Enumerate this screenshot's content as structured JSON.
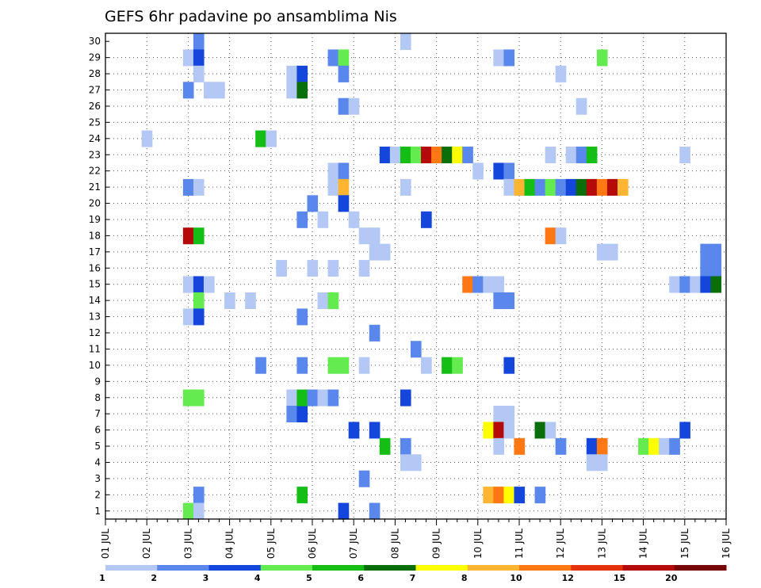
{
  "chart_data": {
    "type": "heatmap",
    "title": "GEFS 6hr padavine po ansamblima Nis",
    "xlabel": "",
    "ylabel": "",
    "x_tick_labels": [
      "01 JUL",
      "02 JUL",
      "03 JUL",
      "04 JUL",
      "05 JUL",
      "06 JUL",
      "07 JUL",
      "08 JUL",
      "09 JUL",
      "10 JUL",
      "11 JUL",
      "12 JUL",
      "13 JUL",
      "14 JUL",
      "15 JUL",
      "16 JUL"
    ],
    "x_range": [
      "01 JUL 00Z",
      "16 JUL 00Z"
    ],
    "time_step": "6hr",
    "y_tick_labels": [
      "1",
      "2",
      "3",
      "4",
      "5",
      "6",
      "7",
      "8",
      "9",
      "10",
      "11",
      "12",
      "13",
      "14",
      "15",
      "16",
      "17",
      "18",
      "19",
      "20",
      "21",
      "22",
      "23",
      "24",
      "25",
      "26",
      "27",
      "28",
      "29",
      "30"
    ],
    "y_range": [
      0,
      30
    ],
    "grid": "dotted",
    "colorbar": {
      "position": "bottom",
      "labels": [
        "1",
        "2",
        "3",
        "4",
        "5",
        "6",
        "7",
        "8",
        "10",
        "12",
        "15",
        "20"
      ],
      "colors": [
        "#b4c8f5",
        "#5a87eb",
        "#1446dc",
        "#64eb50",
        "#14be14",
        "#0a6e0a",
        "#ffff00",
        "#ffb432",
        "#ff7814",
        "#e6320a",
        "#b40a0a",
        "#780505"
      ]
    },
    "cells": [
      {
        "day": "03 JUL",
        "h": "00Z",
        "m": 29,
        "v": 1
      },
      {
        "day": "03 JUL",
        "h": "00Z",
        "m": 27,
        "v": 2
      },
      {
        "day": "03 JUL",
        "h": "00Z",
        "m": 21,
        "v": 2
      },
      {
        "day": "03 JUL",
        "h": "00Z",
        "m": 18,
        "v": 15
      },
      {
        "day": "03 JUL",
        "h": "00Z",
        "m": 15,
        "v": 1
      },
      {
        "day": "03 JUL",
        "h": "00Z",
        "m": 13,
        "v": 1
      },
      {
        "day": "03 JUL",
        "h": "00Z",
        "m": 8,
        "v": 4
      },
      {
        "day": "03 JUL",
        "h": "00Z",
        "m": 1,
        "v": 4
      },
      {
        "day": "03 JUL",
        "h": "06Z",
        "m": 30,
        "v": 2
      },
      {
        "day": "03 JUL",
        "h": "06Z",
        "m": 29,
        "v": 3
      },
      {
        "day": "03 JUL",
        "h": "06Z",
        "m": 28,
        "v": 1
      },
      {
        "day": "03 JUL",
        "h": "06Z",
        "m": 21,
        "v": 1
      },
      {
        "day": "03 JUL",
        "h": "06Z",
        "m": 18,
        "v": 5
      },
      {
        "day": "03 JUL",
        "h": "06Z",
        "m": 15,
        "v": 3
      },
      {
        "day": "03 JUL",
        "h": "06Z",
        "m": 14,
        "v": 4
      },
      {
        "day": "03 JUL",
        "h": "06Z",
        "m": 13,
        "v": 3
      },
      {
        "day": "03 JUL",
        "h": "06Z",
        "m": 8,
        "v": 4
      },
      {
        "day": "03 JUL",
        "h": "06Z",
        "m": 2,
        "v": 2
      },
      {
        "day": "03 JUL",
        "h": "06Z",
        "m": 1,
        "v": 1
      },
      {
        "day": "02 JUL",
        "h": "00Z",
        "m": 24,
        "v": 1
      },
      {
        "day": "03 JUL",
        "h": "12Z",
        "m": 27,
        "v": 1
      },
      {
        "day": "03 JUL",
        "h": "18Z",
        "m": 27,
        "v": 1
      },
      {
        "day": "03 JUL",
        "h": "12Z",
        "m": 15,
        "v": 1
      },
      {
        "day": "04 JUL",
        "h": "00Z",
        "m": 14,
        "v": 1
      },
      {
        "day": "04 JUL",
        "h": "12Z",
        "m": 14,
        "v": 1
      },
      {
        "day": "04 JUL",
        "h": "18Z",
        "m": 24,
        "v": 5
      },
      {
        "day": "05 JUL",
        "h": "00Z",
        "m": 24,
        "v": 1
      },
      {
        "day": "04 JUL",
        "h": "18Z",
        "m": 10,
        "v": 2
      },
      {
        "day": "05 JUL",
        "h": "06Z",
        "m": 16,
        "v": 1
      },
      {
        "day": "05 JUL",
        "h": "12Z",
        "m": 28,
        "v": 1
      },
      {
        "day": "05 JUL",
        "h": "12Z",
        "m": 27,
        "v": 1
      },
      {
        "day": "05 JUL",
        "h": "12Z",
        "m": 8,
        "v": 1
      },
      {
        "day": "05 JUL",
        "h": "18Z",
        "m": 8,
        "v": 1
      },
      {
        "day": "05 JUL",
        "h": "12Z",
        "m": 7,
        "v": 2
      },
      {
        "day": "05 JUL",
        "h": "18Z",
        "m": 28,
        "v": 3
      },
      {
        "day": "05 JUL",
        "h": "18Z",
        "m": 27,
        "v": 6
      },
      {
        "day": "05 JUL",
        "h": "18Z",
        "m": 19,
        "v": 2
      },
      {
        "day": "05 JUL",
        "h": "18Z",
        "m": 13,
        "v": 2
      },
      {
        "day": "05 JUL",
        "h": "18Z",
        "m": 10,
        "v": 2
      },
      {
        "day": "05 JUL",
        "h": "18Z",
        "m": 7,
        "v": 3
      },
      {
        "day": "05 JUL",
        "h": "18Z",
        "m": 2,
        "v": 5
      },
      {
        "day": "05 JUL",
        "h": "18Z",
        "m": 8,
        "v": 5
      },
      {
        "day": "06 JUL",
        "h": "00Z",
        "m": 20,
        "v": 2
      },
      {
        "day": "06 JUL",
        "h": "00Z",
        "m": 16,
        "v": 1
      },
      {
        "day": "06 JUL",
        "h": "00Z",
        "m": 8,
        "v": 2
      },
      {
        "day": "06 JUL",
        "h": "06Z",
        "m": 19,
        "v": 1
      },
      {
        "day": "06 JUL",
        "h": "06Z",
        "m": 14,
        "v": 1
      },
      {
        "day": "06 JUL",
        "h": "06Z",
        "m": 8,
        "v": 1
      },
      {
        "day": "06 JUL",
        "h": "12Z",
        "m": 29,
        "v": 2
      },
      {
        "day": "06 JUL",
        "h": "12Z",
        "m": 22,
        "v": 1
      },
      {
        "day": "06 JUL",
        "h": "12Z",
        "m": 21,
        "v": 1
      },
      {
        "day": "06 JUL",
        "h": "12Z",
        "m": 16,
        "v": 1
      },
      {
        "day": "06 JUL",
        "h": "12Z",
        "m": 14,
        "v": 4
      },
      {
        "day": "06 JUL",
        "h": "12Z",
        "m": 10,
        "v": 4
      },
      {
        "day": "06 JUL",
        "h": "12Z",
        "m": 8,
        "v": 2
      },
      {
        "day": "06 JUL",
        "h": "18Z",
        "m": 29,
        "v": 4
      },
      {
        "day": "06 JUL",
        "h": "18Z",
        "m": 28,
        "v": 2
      },
      {
        "day": "06 JUL",
        "h": "18Z",
        "m": 26,
        "v": 2
      },
      {
        "day": "06 JUL",
        "h": "18Z",
        "m": 22,
        "v": 2
      },
      {
        "day": "06 JUL",
        "h": "18Z",
        "m": 21,
        "v": 8
      },
      {
        "day": "06 JUL",
        "h": "18Z",
        "m": 20,
        "v": 3
      },
      {
        "day": "06 JUL",
        "h": "18Z",
        "m": 10,
        "v": 4
      },
      {
        "day": "06 JUL",
        "h": "18Z",
        "m": 1,
        "v": 3
      },
      {
        "day": "07 JUL",
        "h": "00Z",
        "m": 26,
        "v": 1
      },
      {
        "day": "07 JUL",
        "h": "00Z",
        "m": 19,
        "v": 1
      },
      {
        "day": "07 JUL",
        "h": "00Z",
        "m": 6,
        "v": 3
      },
      {
        "day": "07 JUL",
        "h": "06Z",
        "m": 18,
        "v": 1
      },
      {
        "day": "07 JUL",
        "h": "06Z",
        "m": 16,
        "v": 1
      },
      {
        "day": "07 JUL",
        "h": "06Z",
        "m": 10,
        "v": 1
      },
      {
        "day": "07 JUL",
        "h": "06Z",
        "m": 3,
        "v": 2
      },
      {
        "day": "07 JUL",
        "h": "12Z",
        "m": 18,
        "v": 1
      },
      {
        "day": "07 JUL",
        "h": "12Z",
        "m": 17,
        "v": 1
      },
      {
        "day": "07 JUL",
        "h": "12Z",
        "m": 12,
        "v": 2
      },
      {
        "day": "07 JUL",
        "h": "12Z",
        "m": 6,
        "v": 3
      },
      {
        "day": "07 JUL",
        "h": "12Z",
        "m": 1,
        "v": 2
      },
      {
        "day": "07 JUL",
        "h": "18Z",
        "m": 23,
        "v": 3
      },
      {
        "day": "07 JUL",
        "h": "18Z",
        "m": 17,
        "v": 1
      },
      {
        "day": "07 JUL",
        "h": "18Z",
        "m": 5,
        "v": 5
      },
      {
        "day": "08 JUL",
        "h": "00Z",
        "m": 23,
        "v": 1
      },
      {
        "day": "08 JUL",
        "h": "06Z",
        "m": 30,
        "v": 1
      },
      {
        "day": "08 JUL",
        "h": "06Z",
        "m": 23,
        "v": 5
      },
      {
        "day": "08 JUL",
        "h": "06Z",
        "m": 21,
        "v": 1
      },
      {
        "day": "08 JUL",
        "h": "06Z",
        "m": 8,
        "v": 3
      },
      {
        "day": "08 JUL",
        "h": "06Z",
        "m": 5,
        "v": 2
      },
      {
        "day": "08 JUL",
        "h": "06Z",
        "m": 4,
        "v": 1
      },
      {
        "day": "08 JUL",
        "h": "12Z",
        "m": 23,
        "v": 4
      },
      {
        "day": "08 JUL",
        "h": "12Z",
        "m": 11,
        "v": 2
      },
      {
        "day": "08 JUL",
        "h": "12Z",
        "m": 4,
        "v": 1
      },
      {
        "day": "08 JUL",
        "h": "18Z",
        "m": 23,
        "v": 15
      },
      {
        "day": "08 JUL",
        "h": "18Z",
        "m": 19,
        "v": 3
      },
      {
        "day": "08 JUL",
        "h": "18Z",
        "m": 10,
        "v": 1
      },
      {
        "day": "09 JUL",
        "h": "00Z",
        "m": 23,
        "v": 10
      },
      {
        "day": "09 JUL",
        "h": "06Z",
        "m": 23,
        "v": 6
      },
      {
        "day": "09 JUL",
        "h": "06Z",
        "m": 10,
        "v": 5
      },
      {
        "day": "09 JUL",
        "h": "12Z",
        "m": 23,
        "v": 7
      },
      {
        "day": "09 JUL",
        "h": "12Z",
        "m": 10,
        "v": 4
      },
      {
        "day": "09 JUL",
        "h": "18Z",
        "m": 23,
        "v": 2
      },
      {
        "day": "09 JUL",
        "h": "18Z",
        "m": 15,
        "v": 10
      },
      {
        "day": "10 JUL",
        "h": "00Z",
        "m": 22,
        "v": 1
      },
      {
        "day": "10 JUL",
        "h": "00Z",
        "m": 15,
        "v": 2
      },
      {
        "day": "10 JUL",
        "h": "06Z",
        "m": 15,
        "v": 1
      },
      {
        "day": "10 JUL",
        "h": "06Z",
        "m": 6,
        "v": 7
      },
      {
        "day": "10 JUL",
        "h": "06Z",
        "m": 2,
        "v": 8
      },
      {
        "day": "10 JUL",
        "h": "12Z",
        "m": 29,
        "v": 1
      },
      {
        "day": "10 JUL",
        "h": "12Z",
        "m": 22,
        "v": 3
      },
      {
        "day": "10 JUL",
        "h": "12Z",
        "m": 15,
        "v": 1
      },
      {
        "day": "10 JUL",
        "h": "12Z",
        "m": 14,
        "v": 2
      },
      {
        "day": "10 JUL",
        "h": "12Z",
        "m": 7,
        "v": 1
      },
      {
        "day": "10 JUL",
        "h": "12Z",
        "m": 6,
        "v": 15
      },
      {
        "day": "10 JUL",
        "h": "12Z",
        "m": 5,
        "v": 1
      },
      {
        "day": "10 JUL",
        "h": "12Z",
        "m": 2,
        "v": 10
      },
      {
        "day": "10 JUL",
        "h": "18Z",
        "m": 29,
        "v": 2
      },
      {
        "day": "10 JUL",
        "h": "18Z",
        "m": 22,
        "v": 2
      },
      {
        "day": "10 JUL",
        "h": "18Z",
        "m": 21,
        "v": 1
      },
      {
        "day": "10 JUL",
        "h": "18Z",
        "m": 14,
        "v": 2
      },
      {
        "day": "10 JUL",
        "h": "18Z",
        "m": 10,
        "v": 3
      },
      {
        "day": "10 JUL",
        "h": "18Z",
        "m": 7,
        "v": 1
      },
      {
        "day": "10 JUL",
        "h": "18Z",
        "m": 6,
        "v": 1
      },
      {
        "day": "10 JUL",
        "h": "18Z",
        "m": 2,
        "v": 7
      },
      {
        "day": "11 JUL",
        "h": "00Z",
        "m": 21,
        "v": 8
      },
      {
        "day": "11 JUL",
        "h": "00Z",
        "m": 5,
        "v": 10
      },
      {
        "day": "11 JUL",
        "h": "00Z",
        "m": 2,
        "v": 3
      },
      {
        "day": "11 JUL",
        "h": "06Z",
        "m": 21,
        "v": 5
      },
      {
        "day": "11 JUL",
        "h": "12Z",
        "m": 21,
        "v": 2
      },
      {
        "day": "11 JUL",
        "h": "12Z",
        "m": 6,
        "v": 6
      },
      {
        "day": "11 JUL",
        "h": "12Z",
        "m": 2,
        "v": 2
      },
      {
        "day": "11 JUL",
        "h": "18Z",
        "m": 23,
        "v": 1
      },
      {
        "day": "11 JUL",
        "h": "18Z",
        "m": 21,
        "v": 4
      },
      {
        "day": "11 JUL",
        "h": "18Z",
        "m": 18,
        "v": 10
      },
      {
        "day": "11 JUL",
        "h": "18Z",
        "m": 6,
        "v": 1
      },
      {
        "day": "12 JUL",
        "h": "00Z",
        "m": 28,
        "v": 1
      },
      {
        "day": "12 JUL",
        "h": "00Z",
        "m": 21,
        "v": 2
      },
      {
        "day": "12 JUL",
        "h": "00Z",
        "m": 18,
        "v": 1
      },
      {
        "day": "12 JUL",
        "h": "00Z",
        "m": 5,
        "v": 2
      },
      {
        "day": "12 JUL",
        "h": "06Z",
        "m": 23,
        "v": 1
      },
      {
        "day": "12 JUL",
        "h": "06Z",
        "m": 21,
        "v": 3
      },
      {
        "day": "12 JUL",
        "h": "12Z",
        "m": 26,
        "v": 1
      },
      {
        "day": "12 JUL",
        "h": "12Z",
        "m": 23,
        "v": 2
      },
      {
        "day": "12 JUL",
        "h": "12Z",
        "m": 21,
        "v": 6
      },
      {
        "day": "12 JUL",
        "h": "18Z",
        "m": 23,
        "v": 5
      },
      {
        "day": "12 JUL",
        "h": "18Z",
        "m": 21,
        "v": 15
      },
      {
        "day": "12 JUL",
        "h": "18Z",
        "m": 5,
        "v": 3
      },
      {
        "day": "12 JUL",
        "h": "18Z",
        "m": 4,
        "v": 1
      },
      {
        "day": "13 JUL",
        "h": "00Z",
        "m": 29,
        "v": 4
      },
      {
        "day": "13 JUL",
        "h": "00Z",
        "m": 21,
        "v": 10
      },
      {
        "day": "13 JUL",
        "h": "00Z",
        "m": 17,
        "v": 1
      },
      {
        "day": "13 JUL",
        "h": "00Z",
        "m": 5,
        "v": 10
      },
      {
        "day": "13 JUL",
        "h": "00Z",
        "m": 4,
        "v": 1
      },
      {
        "day": "13 JUL",
        "h": "06Z",
        "m": 21,
        "v": 15
      },
      {
        "day": "13 JUL",
        "h": "06Z",
        "m": 17,
        "v": 1
      },
      {
        "day": "13 JUL",
        "h": "12Z",
        "m": 21,
        "v": 8
      },
      {
        "day": "14 JUL",
        "h": "00Z",
        "m": 5,
        "v": 4
      },
      {
        "day": "14 JUL",
        "h": "06Z",
        "m": 5,
        "v": 7
      },
      {
        "day": "14 JUL",
        "h": "12Z",
        "m": 5,
        "v": 1
      },
      {
        "day": "14 JUL",
        "h": "18Z",
        "m": 15,
        "v": 1
      },
      {
        "day": "14 JUL",
        "h": "18Z",
        "m": 5,
        "v": 2
      },
      {
        "day": "15 JUL",
        "h": "00Z",
        "m": 23,
        "v": 1
      },
      {
        "day": "15 JUL",
        "h": "00Z",
        "m": 15,
        "v": 2
      },
      {
        "day": "15 JUL",
        "h": "00Z",
        "m": 6,
        "v": 3
      },
      {
        "day": "15 JUL",
        "h": "06Z",
        "m": 15,
        "v": 1
      },
      {
        "day": "15 JUL",
        "h": "12Z",
        "m": 17,
        "v": 2
      },
      {
        "day": "15 JUL",
        "h": "12Z",
        "m": 16,
        "v": 2
      },
      {
        "day": "15 JUL",
        "h": "12Z",
        "m": 15,
        "v": 3
      },
      {
        "day": "15 JUL",
        "h": "18Z",
        "m": 17,
        "v": 2
      },
      {
        "day": "15 JUL",
        "h": "18Z",
        "m": 16,
        "v": 2
      },
      {
        "day": "15 JUL",
        "h": "18Z",
        "m": 15,
        "v": 6
      }
    ]
  }
}
